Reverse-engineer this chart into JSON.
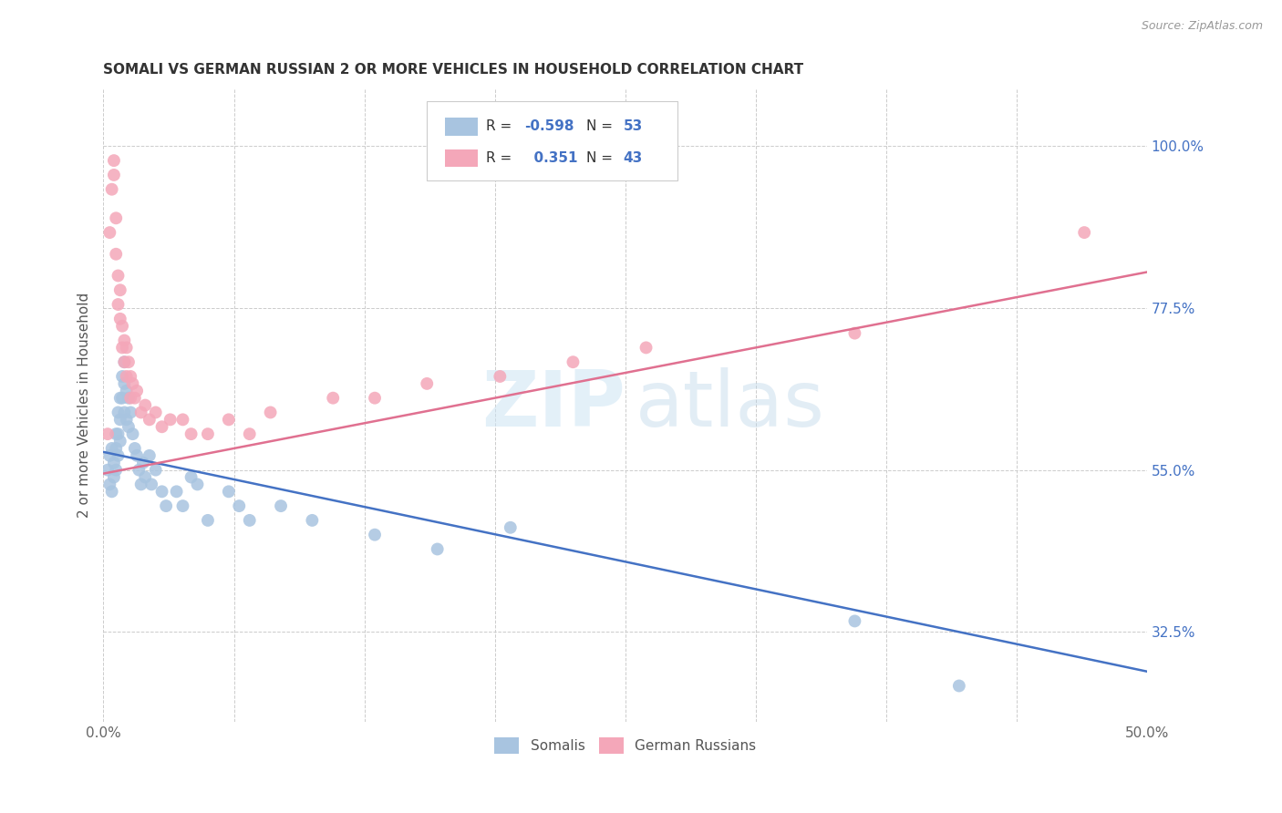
{
  "title": "SOMALI VS GERMAN RUSSIAN 2 OR MORE VEHICLES IN HOUSEHOLD CORRELATION CHART",
  "source": "Source: ZipAtlas.com",
  "ylabel": "2 or more Vehicles in Household",
  "xlim": [
    0.0,
    0.5
  ],
  "ylim": [
    0.2,
    1.08
  ],
  "ytick_positions": [
    0.325,
    0.55,
    0.775,
    1.0
  ],
  "ytick_labels": [
    "32.5%",
    "55.0%",
    "77.5%",
    "100.0%"
  ],
  "xtick_positions": [
    0.0,
    0.0625,
    0.125,
    0.1875,
    0.25,
    0.3125,
    0.375,
    0.4375,
    0.5
  ],
  "xtick_labels": [
    "0.0%",
    "",
    "",
    "",
    "",
    "",
    "",
    "",
    "50.0%"
  ],
  "somalis_R": -0.598,
  "somalis_N": 53,
  "german_russians_R": 0.351,
  "german_russians_N": 43,
  "somali_color": "#a8c4e0",
  "german_russian_color": "#f4a7b9",
  "somali_line_color": "#4472c4",
  "german_russian_line_color": "#e07090",
  "somali_line_x0": 0.0,
  "somali_line_y0": 0.575,
  "somali_line_x1": 0.5,
  "somali_line_y1": 0.27,
  "german_line_x0": 0.0,
  "german_line_y0": 0.545,
  "german_line_x1": 0.5,
  "german_line_y1": 0.825,
  "somali_x": [
    0.002,
    0.003,
    0.003,
    0.004,
    0.004,
    0.005,
    0.005,
    0.006,
    0.006,
    0.006,
    0.007,
    0.007,
    0.007,
    0.008,
    0.008,
    0.008,
    0.009,
    0.009,
    0.01,
    0.01,
    0.01,
    0.011,
    0.011,
    0.012,
    0.012,
    0.013,
    0.014,
    0.015,
    0.016,
    0.017,
    0.018,
    0.019,
    0.02,
    0.022,
    0.023,
    0.025,
    0.028,
    0.03,
    0.035,
    0.038,
    0.042,
    0.045,
    0.05,
    0.06,
    0.065,
    0.07,
    0.085,
    0.1,
    0.13,
    0.16,
    0.195,
    0.36,
    0.41
  ],
  "somali_y": [
    0.55,
    0.57,
    0.53,
    0.58,
    0.52,
    0.56,
    0.54,
    0.6,
    0.58,
    0.55,
    0.63,
    0.6,
    0.57,
    0.65,
    0.62,
    0.59,
    0.68,
    0.65,
    0.7,
    0.67,
    0.63,
    0.66,
    0.62,
    0.65,
    0.61,
    0.63,
    0.6,
    0.58,
    0.57,
    0.55,
    0.53,
    0.56,
    0.54,
    0.57,
    0.53,
    0.55,
    0.52,
    0.5,
    0.52,
    0.5,
    0.54,
    0.53,
    0.48,
    0.52,
    0.5,
    0.48,
    0.5,
    0.48,
    0.46,
    0.44,
    0.47,
    0.34,
    0.25
  ],
  "german_x": [
    0.002,
    0.003,
    0.004,
    0.005,
    0.005,
    0.006,
    0.006,
    0.007,
    0.007,
    0.008,
    0.008,
    0.009,
    0.009,
    0.01,
    0.01,
    0.011,
    0.011,
    0.012,
    0.013,
    0.013,
    0.014,
    0.015,
    0.016,
    0.018,
    0.02,
    0.022,
    0.025,
    0.028,
    0.032,
    0.038,
    0.042,
    0.05,
    0.06,
    0.07,
    0.08,
    0.11,
    0.13,
    0.155,
    0.19,
    0.225,
    0.26,
    0.36,
    0.47
  ],
  "german_y": [
    0.6,
    0.88,
    0.94,
    0.96,
    0.98,
    0.9,
    0.85,
    0.82,
    0.78,
    0.8,
    0.76,
    0.75,
    0.72,
    0.73,
    0.7,
    0.72,
    0.68,
    0.7,
    0.68,
    0.65,
    0.67,
    0.65,
    0.66,
    0.63,
    0.64,
    0.62,
    0.63,
    0.61,
    0.62,
    0.62,
    0.6,
    0.6,
    0.62,
    0.6,
    0.63,
    0.65,
    0.65,
    0.67,
    0.68,
    0.7,
    0.72,
    0.74,
    0.88
  ]
}
